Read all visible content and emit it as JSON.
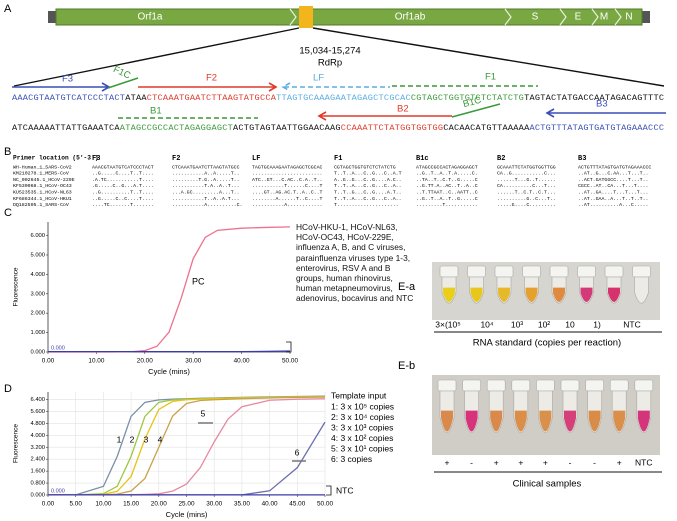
{
  "panel_labels": [
    "A",
    "B",
    "C",
    "D",
    "E-a",
    "E-b"
  ],
  "genome": {
    "genes": [
      "Orf1a",
      "Orf1ab",
      "S",
      "E",
      "M",
      "N"
    ],
    "region": "15,034-15,274",
    "target": "RdRp"
  },
  "primers": {
    "F3": "F3",
    "F1C": "F1C",
    "F2": "F2",
    "LF": "LF",
    "F1": "F1",
    "B1": "B1",
    "B2": "B2",
    "B1C": "B1C",
    "B3": "B3"
  },
  "sequence": {
    "line1": [
      {
        "text": "AAACGTAATGTCATCCCTACT",
        "color": "#3b4fb8"
      },
      {
        "text": "ATAA",
        "color": "#111111"
      },
      {
        "text": "CTCAAATGAATCTTAAGTATGCCA",
        "color": "#e03a2a"
      },
      {
        "text": "TTAGTGCAAAGAATAGAGCTCGCAC",
        "color": "#5aaee0"
      },
      {
        "text": "CGTAGCTGGTGTCTCTATCTG",
        "color": "#3a9a3a"
      },
      {
        "text": "TAGTACTATGACCAATAGACAGTTTC",
        "color": "#111111"
      }
    ],
    "line2": [
      {
        "text": "ATCAAAAATTATTGAAATCA",
        "color": "#111111"
      },
      {
        "text": "ATAGCCGCCACTAGAGGAGCT",
        "color": "#3a9a3a"
      },
      {
        "text": "ACTGTAGTAATTGGAACAAG",
        "color": "#111111"
      },
      {
        "text": "CCAAATTCTATGGTGGTGG",
        "color": "#e03a2a"
      },
      {
        "text": "CACAACATGTTAAAAA",
        "color": "#111111"
      },
      {
        "text": "ACTGTTTATAGTGATGTAGAAACCC",
        "color": "#3b4fb8"
      }
    ]
  },
  "alignment": {
    "header": "Primer location (5'-3')",
    "columns": [
      "F3",
      "F2",
      "LF",
      "F1",
      "B1c",
      "B2",
      "B3"
    ],
    "rows": [
      {
        "name": "WH-Human_1_SARS-CoV2",
        "cells": [
          "AAACGTAATGTCATCCCTACT",
          "CTCAAATGAATCTTAAGTATGCC",
          "TAGTGCAAAGAATAGAGCTCGCAC",
          "CGTAGCTGGTGTCTCTATCTG",
          "ATAGCCGCCACTAGAGGAGCT",
          "GCAAATTCTATGGTGGTTGG",
          "ACTGTTTATAGTGATGTAGAAACCC"
        ]
      },
      {
        "name": "KM210278.1_MERS-CoV",
        "cells": [
          "..G.....C....T..T....",
          "...........A..A.....T..",
          "........................",
          "T..T..A...C..G...C..A.T",
          "..G..T..A..T.A.....C.",
          "CA..G...........C...",
          "..AT..G...C.AA...T...T.."
        ]
      },
      {
        "name": "NC_002645.1_HCoV-229E",
        "cells": [
          ".A.TC...........T....",
          ".........T.G..A.....T..",
          "ATC..GT...C.AC..C.A..T..",
          "A..G..G...C..G....A.C..",
          "..TA..T..C.T..G.....C",
          "......T...G..T......",
          "..ACT.GATGGCC....T...T.."
        ]
      },
      {
        "name": "KF530068.1_HCoV-OC43",
        "cells": [
          ".G.....C..G...A.T....",
          "...........T.A..A..T...",
          "...........T......C....T",
          "T..T..A...C..G...C..A..",
          "..G.TT.A..AC..T..A..C",
          "CA..........C...T...",
          "CGCC..AT..CA...T...T...."
        ]
      },
      {
        "name": "KU523535.1_HCoV-NL63",
        "cells": [
          "..G..........T..T....",
          "...A.GC.........A...T..",
          "....GT..AG.AC.T..A..C..T",
          "T..T..G...C..G....A.T..",
          "..T.TTAAT..C..AATT..C",
          "......T..C.T..C.T...",
          "..AT..GA....T...T...T..."
        ]
      },
      {
        "name": "KF686344.1_HCoV-HKU1",
        "cells": [
          "..G.....C..C....T....",
          "...........T..A..A.T...",
          "........A......T..C....T",
          "T..T..A...C..G...C..A..",
          "..G..T..A..T..G.....C",
          "..........G..C...T..",
          "..AT..GAA..A...T..T..T.."
        ]
      },
      {
        "name": "DQ182595.1_SARS-CoV",
        "cells": [
          "....TC.......T.......",
          "...........A..........C.",
          "...........A............",
          "T.....................",
          ".........T...........",
          ".....G....C.........",
          "..AT..........A...C....."
        ]
      }
    ]
  },
  "chart_data": [
    {
      "type": "line",
      "x_label": "Cycle (mins)",
      "y_label": "Fluorescence",
      "threshold_label": "0.000",
      "grid": false,
      "xlim": [
        0,
        50
      ],
      "ylim": [
        0,
        6.7
      ],
      "xticks": [
        {
          "value": 0,
          "label": "0.00"
        },
        {
          "value": 10,
          "label": "10.00"
        },
        {
          "value": 20,
          "label": "20.00"
        },
        {
          "value": 30,
          "label": "30.00"
        },
        {
          "value": 40,
          "label": "40.00"
        },
        {
          "value": 50,
          "label": "50.00"
        }
      ],
      "yticks": [
        {
          "value": 0,
          "label": "0.000"
        },
        {
          "value": 1,
          "label": "1.000"
        },
        {
          "value": 2,
          "label": "2.000"
        },
        {
          "value": 3,
          "label": "3.000"
        },
        {
          "value": 4,
          "label": "4.000"
        },
        {
          "value": 5,
          "label": "5.000"
        },
        {
          "value": 6,
          "label": "6.000"
        }
      ],
      "x": [
        0,
        5,
        10,
        12.5,
        15,
        17.5,
        20,
        22.5,
        25,
        27.5,
        30,
        32.5,
        35,
        40,
        45,
        50
      ],
      "series": [
        {
          "name": "PC",
          "color": "#f0708c",
          "values": [
            0,
            0,
            0,
            0,
            0.01,
            0.02,
            0.07,
            0.29,
            1.02,
            2.76,
            4.81,
            5.91,
            6.27,
            6.38,
            6.42,
            6.45
          ]
        },
        {
          "name": "HCoV-HKU-1, HCoV-NL63, HCoV-OC43, HCoV-229E, influenza A, B, and C viruses, parainfluenza viruses type 1-3, enterovirus, RSV A and B groups, human rhinovirus, human metapneumovirus, adenovirus, bocavirus and NTC",
          "color": "#3c3ca8",
          "values": [
            0.02,
            0.02,
            0.02,
            0.02,
            0.02,
            0.02,
            0.02,
            0.02,
            0.02,
            0.02,
            0.02,
            0.02,
            0.02,
            0.02,
            0.03,
            0.05
          ]
        }
      ]
    },
    {
      "type": "line",
      "x_label": "Cycle (mins)",
      "y_label": "Fluorescence",
      "threshold_label": "0.000",
      "grid": true,
      "legend_title": "Template input",
      "curve_labels": [
        "1",
        "2",
        "3",
        "4",
        "5",
        "6"
      ],
      "xlim": [
        0,
        50
      ],
      "ylim": [
        0,
        6.9
      ],
      "xticks": [
        {
          "value": 0,
          "label": "0.00"
        },
        {
          "value": 5,
          "label": "5.00"
        },
        {
          "value": 10,
          "label": "10.00"
        },
        {
          "value": 15,
          "label": "15.00"
        },
        {
          "value": 20,
          "label": "20.00"
        },
        {
          "value": 25,
          "label": "25.00"
        },
        {
          "value": 30,
          "label": "30.00"
        },
        {
          "value": 35,
          "label": "35.00"
        },
        {
          "value": 40,
          "label": "40.00"
        },
        {
          "value": 45,
          "label": "45.00"
        },
        {
          "value": 50,
          "label": "50.00"
        }
      ],
      "yticks": [
        {
          "value": 0,
          "label": "0.000"
        },
        {
          "value": 0.8,
          "label": "0.800"
        },
        {
          "value": 1.6,
          "label": "1.600"
        },
        {
          "value": 2.4,
          "label": "2.400"
        },
        {
          "value": 3.2,
          "label": "3.200"
        },
        {
          "value": 4,
          "label": "4.000"
        },
        {
          "value": 4.8,
          "label": "4.800"
        },
        {
          "value": 5.6,
          "label": "5.600"
        },
        {
          "value": 6.4,
          "label": "6.400"
        }
      ],
      "x": [
        0,
        5,
        10,
        12.5,
        15,
        17.5,
        20,
        22.5,
        25,
        27.5,
        30,
        32.5,
        35,
        40,
        45,
        50
      ],
      "series": [
        {
          "name": "1: 3 x 10⁵ copies",
          "color": "#7a8fa6",
          "values": [
            0.01,
            0.01,
            0.58,
            2.59,
            5.27,
            6.21,
            6.37,
            6.42,
            6.45,
            6.48,
            6.5,
            6.52,
            6.54,
            6.57,
            6.6,
            6.62
          ]
        },
        {
          "name": "2: 3 x 10⁴ copies",
          "color": "#9cc640",
          "values": [
            0.01,
            0.01,
            0.09,
            0.58,
            2.59,
            5.27,
            6.21,
            6.37,
            6.42,
            6.45,
            6.48,
            6.5,
            6.52,
            6.55,
            6.58,
            6.6
          ]
        },
        {
          "name": "3: 3 x 10³ copies",
          "color": "#e8c21a",
          "values": [
            0.01,
            0.01,
            0.04,
            0.25,
            1.24,
            3.76,
            5.73,
            6.27,
            6.38,
            6.42,
            6.45,
            6.48,
            6.5,
            6.53,
            6.56,
            6.58
          ]
        },
        {
          "name": "4: 3 x 10² copies",
          "color": "#c8a24a",
          "values": [
            0.01,
            0.01,
            0.01,
            0.06,
            0.27,
            1.11,
            3.2,
            5.29,
            6.13,
            6.33,
            6.38,
            6.42,
            6.45,
            6.5,
            6.54,
            6.56
          ]
        },
        {
          "name": "5: 3 x 10¹ copies",
          "color": "#e88aa0",
          "values": [
            0.01,
            0.01,
            0.01,
            0.01,
            0.02,
            0.04,
            0.08,
            0.26,
            0.73,
            1.84,
            3.56,
            5.09,
            5.91,
            6.35,
            6.42,
            6.45
          ]
        },
        {
          "name": "6:  3 copies",
          "color": "#6a6fb0",
          "values": [
            0.01,
            0.01,
            0.01,
            0.01,
            0.01,
            0.01,
            0.01,
            0.01,
            0.01,
            0.01,
            0.01,
            0.01,
            0.01,
            0.28,
            1.83,
            4.88
          ]
        },
        {
          "name": "NTC",
          "color": "#3c3ca8",
          "values": [
            0.01,
            0.01,
            0.01,
            0.01,
            0.01,
            0.01,
            0.01,
            0.01,
            0.01,
            0.01,
            0.01,
            0.01,
            0.01,
            0.01,
            0.01,
            0.01
          ]
        }
      ]
    }
  ],
  "photos": {
    "standard": {
      "labels": [
        "3×(10⁵",
        "10⁴",
        "10³",
        "10²",
        "10",
        "1)",
        "NTC"
      ],
      "caption": "RNA standard (copies per reaction)"
    },
    "clinical": {
      "labels": [
        "+",
        "-",
        "+",
        "+",
        "+",
        "-",
        "-",
        "+",
        "NTC"
      ],
      "caption": "Clinical samples"
    }
  }
}
